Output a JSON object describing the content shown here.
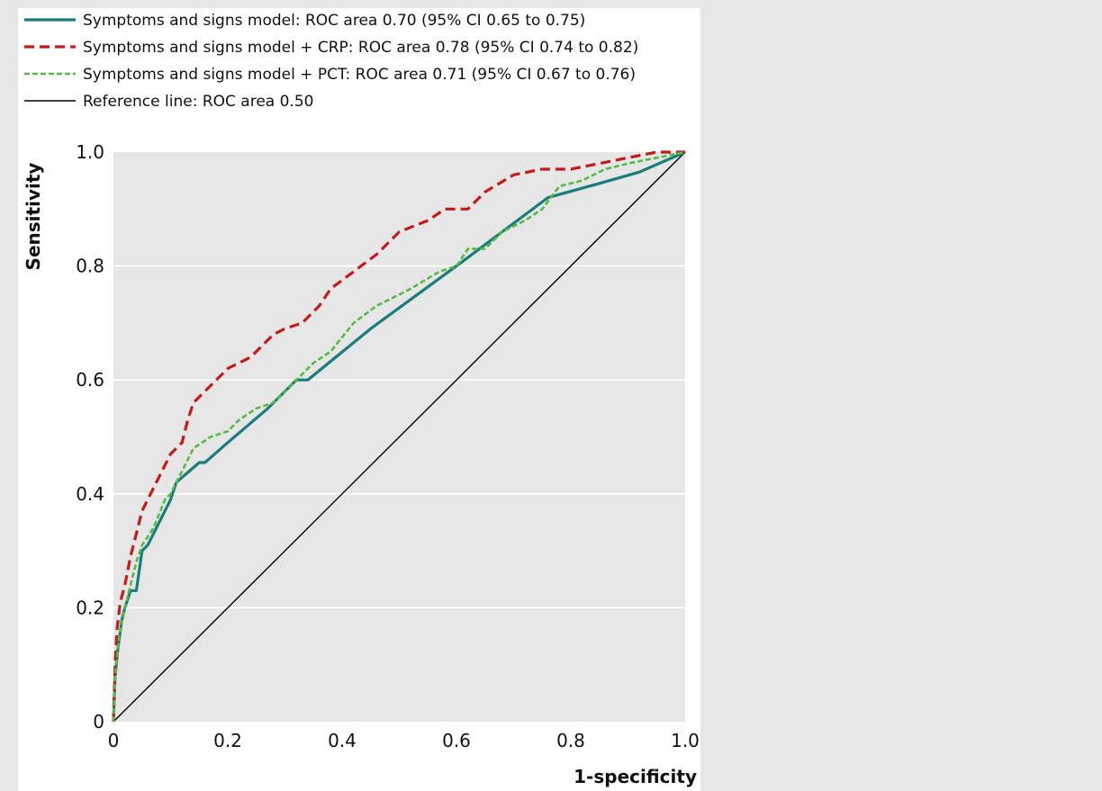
{
  "chart_data": {
    "type": "line",
    "title": "",
    "xlabel": "1-specificity",
    "ylabel": "Sensitivity",
    "xlim": [
      0,
      1
    ],
    "ylim": [
      0,
      1
    ],
    "x_ticks": [
      "0",
      "0.2",
      "0.4",
      "0.6",
      "0.8",
      "1.0"
    ],
    "y_ticks": [
      "0",
      "0.2",
      "0.4",
      "0.6",
      "0.8",
      "1.0"
    ],
    "grid": "horizontal",
    "plot_background": "#e6e6e6",
    "legend_position": "top",
    "legend": [
      {
        "series": "Symptoms and signs model",
        "label": "Symptoms and signs model: ROC area 0.70 (95% CI 0.65 to 0.75)",
        "color": "#1a7d7d",
        "style": "solid"
      },
      {
        "series": "Symptoms and signs model + CRP",
        "label": "Symptoms and signs model + CRP: ROC area 0.78 (95% CI 0.74 to 0.82)",
        "color": "#c41a1a",
        "style": "dashed"
      },
      {
        "series": "Symptoms and signs model + PCT",
        "label": "Symptoms and signs model + PCT: ROC area 0.71 (95% CI 0.67 to 0.76)",
        "color": "#55bb44",
        "style": "dashed-fine"
      },
      {
        "series": "Reference line",
        "label": "Reference line: ROC area 0.50",
        "color": "#000000",
        "style": "solid-thin"
      }
    ],
    "series": [
      {
        "name": "Symptoms and signs model",
        "points": [
          [
            0,
            0
          ],
          [
            0.003,
            0.08
          ],
          [
            0.008,
            0.13
          ],
          [
            0.015,
            0.18
          ],
          [
            0.02,
            0.2
          ],
          [
            0.03,
            0.23
          ],
          [
            0.04,
            0.23
          ],
          [
            0.05,
            0.3
          ],
          [
            0.06,
            0.31
          ],
          [
            0.08,
            0.35
          ],
          [
            0.1,
            0.39
          ],
          [
            0.11,
            0.42
          ],
          [
            0.15,
            0.455
          ],
          [
            0.16,
            0.455
          ],
          [
            0.2,
            0.49
          ],
          [
            0.27,
            0.55
          ],
          [
            0.3,
            0.58
          ],
          [
            0.32,
            0.6
          ],
          [
            0.34,
            0.6
          ],
          [
            0.45,
            0.69
          ],
          [
            0.6,
            0.8
          ],
          [
            0.7,
            0.875
          ],
          [
            0.76,
            0.92
          ],
          [
            0.85,
            0.945
          ],
          [
            0.92,
            0.965
          ],
          [
            1.0,
            1.0
          ]
        ]
      },
      {
        "name": "Symptoms and signs model + CRP",
        "points": [
          [
            0,
            0
          ],
          [
            0.003,
            0.1
          ],
          [
            0.006,
            0.16
          ],
          [
            0.012,
            0.21
          ],
          [
            0.02,
            0.24
          ],
          [
            0.03,
            0.29
          ],
          [
            0.04,
            0.33
          ],
          [
            0.05,
            0.37
          ],
          [
            0.06,
            0.39
          ],
          [
            0.08,
            0.43
          ],
          [
            0.1,
            0.47
          ],
          [
            0.12,
            0.49
          ],
          [
            0.13,
            0.53
          ],
          [
            0.14,
            0.56
          ],
          [
            0.16,
            0.58
          ],
          [
            0.18,
            0.6
          ],
          [
            0.2,
            0.62
          ],
          [
            0.24,
            0.64
          ],
          [
            0.28,
            0.68
          ],
          [
            0.3,
            0.69
          ],
          [
            0.33,
            0.7
          ],
          [
            0.36,
            0.73
          ],
          [
            0.38,
            0.76
          ],
          [
            0.42,
            0.79
          ],
          [
            0.46,
            0.82
          ],
          [
            0.5,
            0.86
          ],
          [
            0.55,
            0.88
          ],
          [
            0.58,
            0.9
          ],
          [
            0.62,
            0.9
          ],
          [
            0.65,
            0.93
          ],
          [
            0.7,
            0.96
          ],
          [
            0.75,
            0.97
          ],
          [
            0.8,
            0.97
          ],
          [
            0.85,
            0.98
          ],
          [
            0.9,
            0.99
          ],
          [
            0.95,
            1.0
          ],
          [
            1.0,
            1.0
          ]
        ]
      },
      {
        "name": "Symptoms and signs model + PCT",
        "points": [
          [
            0,
            0
          ],
          [
            0.004,
            0.09
          ],
          [
            0.01,
            0.15
          ],
          [
            0.02,
            0.2
          ],
          [
            0.03,
            0.24
          ],
          [
            0.04,
            0.28
          ],
          [
            0.05,
            0.31
          ],
          [
            0.07,
            0.34
          ],
          [
            0.09,
            0.39
          ],
          [
            0.1,
            0.4
          ],
          [
            0.12,
            0.44
          ],
          [
            0.14,
            0.48
          ],
          [
            0.17,
            0.5
          ],
          [
            0.2,
            0.51
          ],
          [
            0.22,
            0.53
          ],
          [
            0.25,
            0.55
          ],
          [
            0.28,
            0.56
          ],
          [
            0.3,
            0.58
          ],
          [
            0.35,
            0.63
          ],
          [
            0.38,
            0.65
          ],
          [
            0.42,
            0.7
          ],
          [
            0.46,
            0.73
          ],
          [
            0.52,
            0.76
          ],
          [
            0.57,
            0.79
          ],
          [
            0.6,
            0.8
          ],
          [
            0.62,
            0.83
          ],
          [
            0.65,
            0.83
          ],
          [
            0.68,
            0.86
          ],
          [
            0.72,
            0.88
          ],
          [
            0.75,
            0.9
          ],
          [
            0.78,
            0.94
          ],
          [
            0.82,
            0.95
          ],
          [
            0.86,
            0.97
          ],
          [
            0.9,
            0.98
          ],
          [
            0.95,
            0.99
          ],
          [
            1.0,
            1.0
          ]
        ]
      },
      {
        "name": "Reference line",
        "points": [
          [
            0,
            0
          ],
          [
            1,
            1
          ]
        ]
      }
    ]
  }
}
